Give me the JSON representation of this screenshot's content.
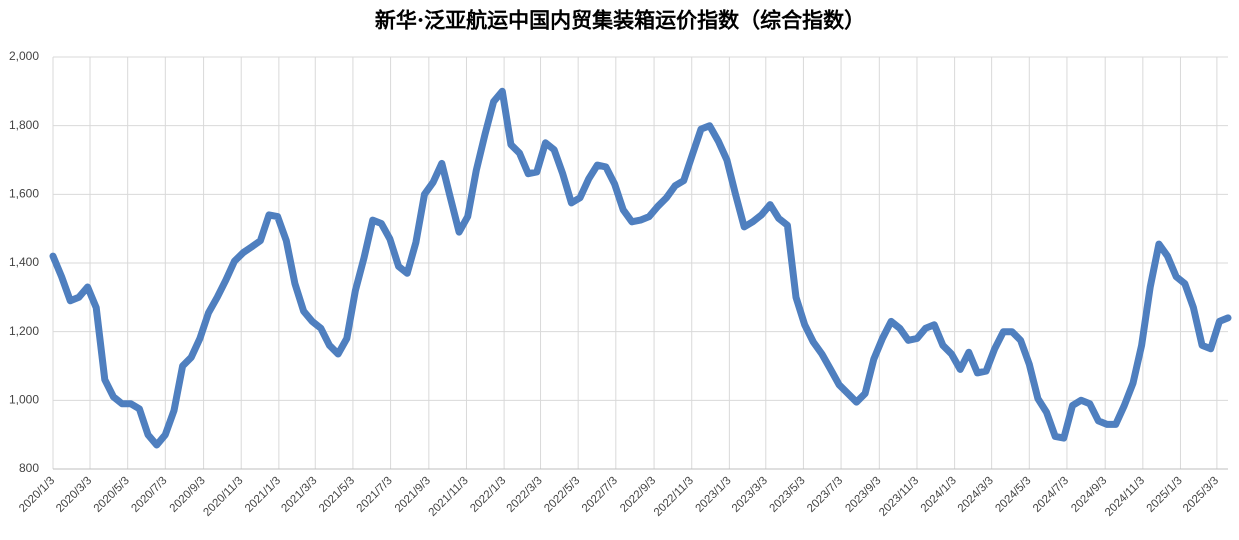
{
  "chart_data": {
    "type": "line",
    "title": "新华·泛亚航运中国内贸集装箱运价指数（综合指数）",
    "x": [
      "2020/1/3",
      "2020/1/17",
      "2020/1/31",
      "2020/2/14",
      "2020/2/28",
      "2020/3/13",
      "2020/3/27",
      "2020/4/10",
      "2020/4/24",
      "2020/5/8",
      "2020/5/22",
      "2020/6/5",
      "2020/6/19",
      "2020/7/3",
      "2020/7/17",
      "2020/7/31",
      "2020/8/14",
      "2020/8/28",
      "2020/9/11",
      "2020/9/25",
      "2020/10/9",
      "2020/10/23",
      "2020/11/6",
      "2020/11/20",
      "2020/12/4",
      "2020/12/18",
      "2021/1/1",
      "2021/1/15",
      "2021/1/29",
      "2021/2/12",
      "2021/2/26",
      "2021/3/12",
      "2021/3/26",
      "2021/4/9",
      "2021/4/23",
      "2021/5/7",
      "2021/5/21",
      "2021/6/4",
      "2021/6/18",
      "2021/7/2",
      "2021/7/16",
      "2021/7/30",
      "2021/8/13",
      "2021/8/27",
      "2021/9/10",
      "2021/9/24",
      "2021/10/8",
      "2021/10/22",
      "2021/11/5",
      "2021/11/19",
      "2021/12/3",
      "2021/12/17",
      "2021/12/31",
      "2022/1/14",
      "2022/1/28",
      "2022/2/11",
      "2022/2/25",
      "2022/3/11",
      "2022/3/25",
      "2022/4/8",
      "2022/4/22",
      "2022/5/6",
      "2022/5/20",
      "2022/6/3",
      "2022/6/17",
      "2022/7/1",
      "2022/7/15",
      "2022/7/29",
      "2022/8/12",
      "2022/8/26",
      "2022/9/9",
      "2022/9/23",
      "2022/10/7",
      "2022/10/21",
      "2022/11/4",
      "2022/11/18",
      "2022/12/2",
      "2022/12/16",
      "2022/12/30",
      "2023/1/13",
      "2023/1/27",
      "2023/2/10",
      "2023/2/24",
      "2023/3/10",
      "2023/3/24",
      "2023/4/7",
      "2023/4/21",
      "2023/5/5",
      "2023/5/19",
      "2023/6/2",
      "2023/6/16",
      "2023/6/30",
      "2023/7/14",
      "2023/7/28",
      "2023/8/11",
      "2023/8/25",
      "2023/9/8",
      "2023/9/22",
      "2023/10/6",
      "2023/10/20",
      "2023/11/3",
      "2023/11/17",
      "2023/12/1",
      "2023/12/15",
      "2023/12/29",
      "2024/1/12",
      "2024/1/26",
      "2024/2/9",
      "2024/2/23",
      "2024/3/8",
      "2024/3/22",
      "2024/4/5",
      "2024/4/19",
      "2024/5/3",
      "2024/5/17",
      "2024/5/31",
      "2024/6/14",
      "2024/6/28",
      "2024/7/12",
      "2024/7/26",
      "2024/8/9",
      "2024/8/23",
      "2024/9/6",
      "2024/9/20",
      "2024/10/4",
      "2024/10/18",
      "2024/11/1",
      "2024/11/15",
      "2024/11/29",
      "2024/12/13",
      "2024/12/27",
      "2025/1/10",
      "2025/1/24",
      "2025/2/7",
      "2025/2/21",
      "2025/3/7",
      "2025/3/21"
    ],
    "series": [
      {
        "name": "综合指数",
        "color": "#4f7fbf",
        "values": [
          1420,
          1360,
          1290,
          1300,
          1330,
          1270,
          1060,
          1010,
          990,
          990,
          975,
          900,
          870,
          900,
          970,
          1100,
          1125,
          1180,
          1255,
          1300,
          1350,
          1405,
          1430,
          1447,
          1465,
          1540,
          1535,
          1465,
          1340,
          1260,
          1230,
          1210,
          1160,
          1135,
          1180,
          1320,
          1415,
          1525,
          1515,
          1470,
          1390,
          1370,
          1460,
          1600,
          1635,
          1690,
          1590,
          1490,
          1535,
          1670,
          1775,
          1870,
          1900,
          1745,
          1720,
          1660,
          1665,
          1750,
          1730,
          1660,
          1575,
          1590,
          1645,
          1685,
          1680,
          1630,
          1555,
          1520,
          1525,
          1535,
          1565,
          1590,
          1625,
          1640,
          1715,
          1790,
          1800,
          1755,
          1700,
          1600,
          1505,
          1520,
          1540,
          1570,
          1530,
          1510,
          1300,
          1220,
          1170,
          1135,
          1090,
          1045,
          1020,
          995,
          1020,
          1120,
          1180,
          1230,
          1210,
          1175,
          1180,
          1210,
          1220,
          1160,
          1135,
          1090,
          1140,
          1080,
          1085,
          1150,
          1200,
          1200,
          1175,
          1105,
          1005,
          965,
          895,
          890,
          985,
          1000,
          990,
          940,
          930,
          930,
          985,
          1050,
          1160,
          1330,
          1455,
          1420,
          1360,
          1340,
          1270,
          1160,
          1150,
          1230,
          1240
        ]
      }
    ],
    "xlim": [
      "2020/1/3",
      "2025/3/21"
    ],
    "xticks": [
      "2020/1/3",
      "2020/3/3",
      "2020/5/3",
      "2020/7/3",
      "2020/9/3",
      "2020/11/3",
      "2021/1/3",
      "2021/3/3",
      "2021/5/3",
      "2021/7/3",
      "2021/9/3",
      "2021/11/3",
      "2022/1/3",
      "2022/3/3",
      "2022/5/3",
      "2022/7/3",
      "2022/9/3",
      "2022/11/3",
      "2023/1/3",
      "2023/3/3",
      "2023/5/3",
      "2023/7/3",
      "2023/9/3",
      "2023/11/3",
      "2024/1/3",
      "2024/3/3",
      "2024/5/3",
      "2024/7/3",
      "2024/9/3",
      "2024/11/3",
      "2025/1/3",
      "2025/3/3"
    ],
    "ylim": [
      800,
      2000
    ],
    "yticks": [
      800,
      {
        "value": 1000,
        "label": "1,000"
      },
      {
        "value": 1200,
        "label": "1,200"
      },
      {
        "value": 1400,
        "label": "1,400"
      },
      {
        "value": 1600,
        "label": "1,600"
      },
      {
        "value": 1800,
        "label": "1,800"
      },
      {
        "value": 2000,
        "label": "2,000"
      }
    ],
    "grid": true
  }
}
